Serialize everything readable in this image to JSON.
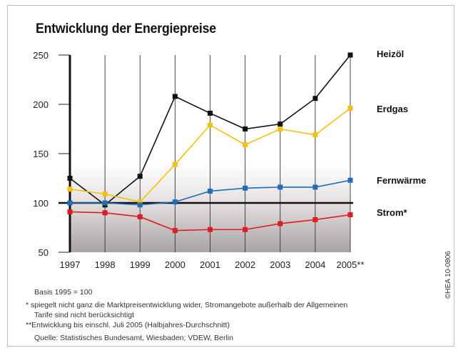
{
  "title": "Entwicklung der Energiepreise",
  "chart_data": {
    "type": "line",
    "x": [
      "1997",
      "1998",
      "1999",
      "2000",
      "2001",
      "2002",
      "2003",
      "2004",
      "2005**"
    ],
    "ylim": [
      50,
      250
    ],
    "yticks": [
      50,
      100,
      150,
      200,
      250
    ],
    "reference_line": 100,
    "grid": "vertical",
    "legend": "right, end-of-line labels",
    "series": [
      {
        "name": "Heizöl",
        "color": "#111111",
        "values": [
          125,
          98,
          127,
          208,
          191,
          175,
          180,
          206,
          250
        ]
      },
      {
        "name": "Erdgas",
        "color": "#f4c20d",
        "values": [
          114,
          109,
          101,
          139,
          179,
          159,
          175,
          169,
          196
        ]
      },
      {
        "name": "Fernwärme",
        "color": "#1f6fb8",
        "values": [
          100,
          100,
          98,
          101,
          112,
          115,
          116,
          116,
          123
        ]
      },
      {
        "name": "Strom*",
        "color": "#e01b24",
        "values": [
          91,
          90,
          86,
          72,
          73,
          73,
          79,
          83,
          88
        ]
      }
    ]
  },
  "notes": {
    "basis": "Basis 1995 = 100",
    "star_1": "*   spiegelt nicht ganz die Marktpreisentwicklung wider, Stromangebote außerhalb der Allgemeinen",
    "star_2": "Tarife sind nicht berücksichtigt",
    "double_star": "**Entwicklung bis einschl. Juli 2005 (Halbjahres-Durchschnitt)",
    "source": "Quelle: Statistisches Bundesamt, Wiesbaden; VDEW, Berlin"
  },
  "credit": "©HEA 10-0806"
}
